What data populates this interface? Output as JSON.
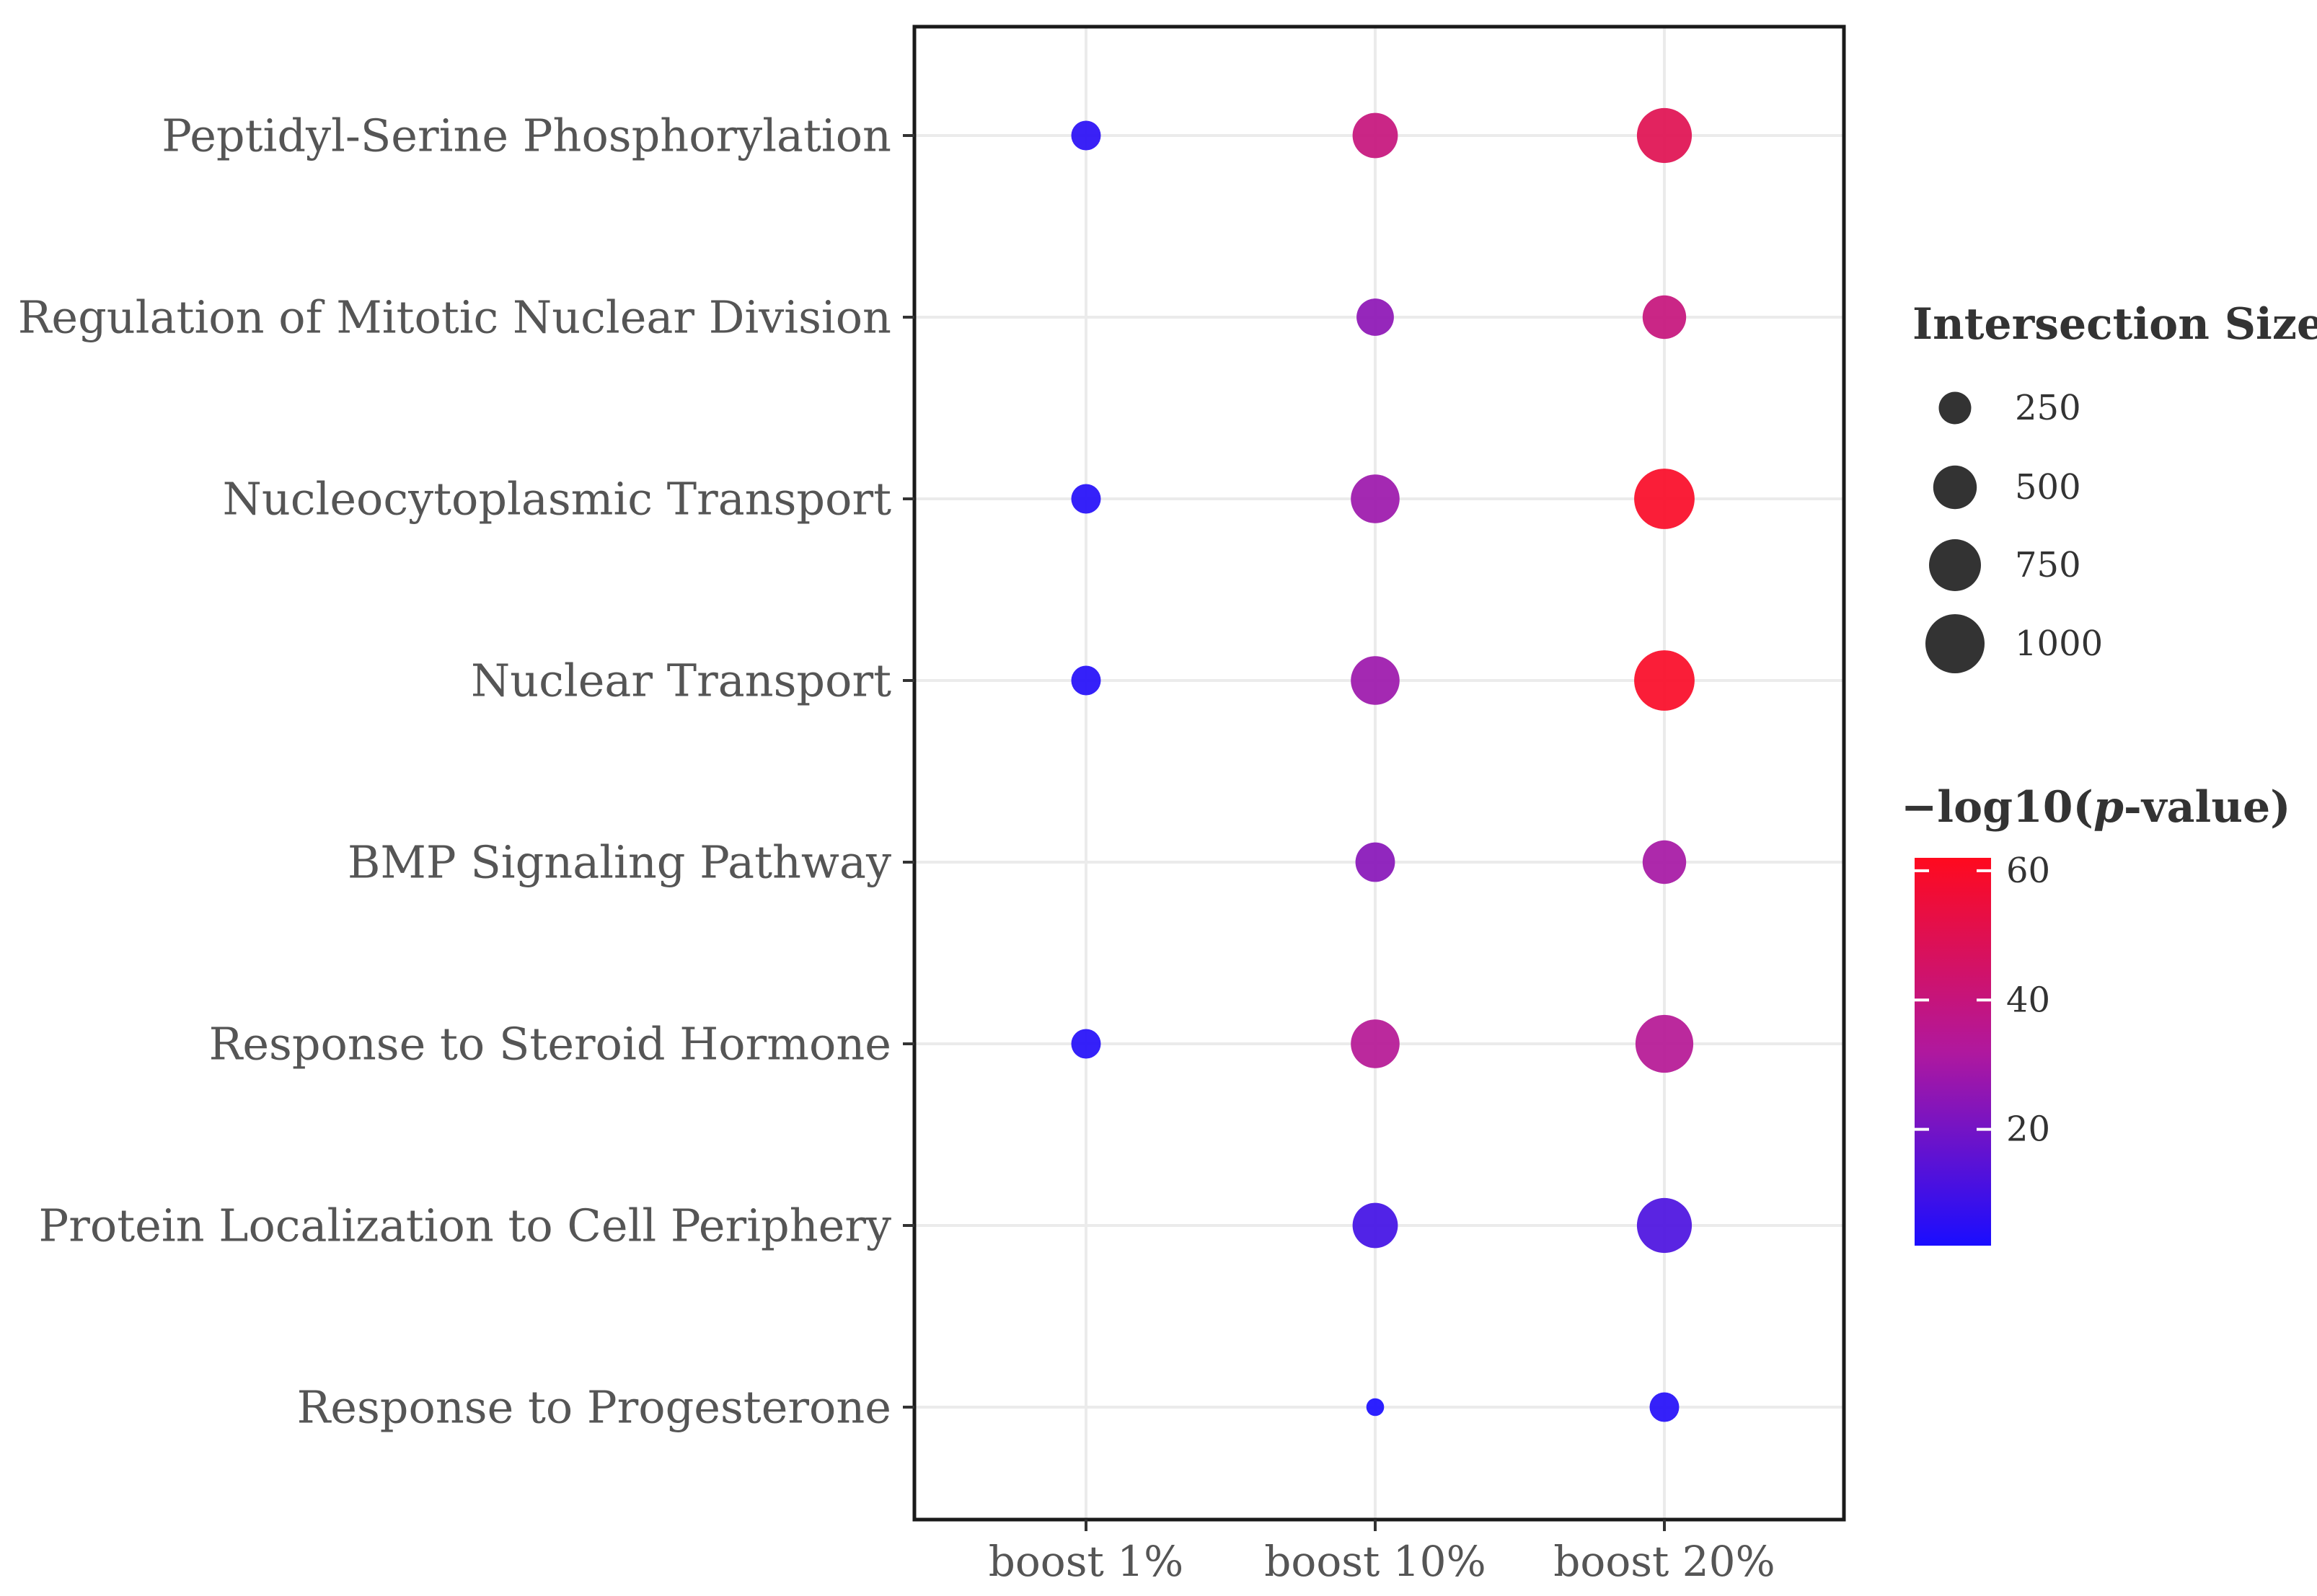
{
  "chart_data": {
    "type": "dot",
    "title": "",
    "xlabel": "",
    "ylabel": "",
    "x_categories": [
      "boost 1%",
      "boost 10%",
      "boost 20%"
    ],
    "y_categories": [
      "Peptidyl-Serine Phosphorylation",
      "Regulation of Mitotic Nuclear Division",
      "Nucleocytoplasmic Transport",
      "Nuclear Transport",
      "BMP Signaling Pathway",
      "Response to Steroid Hormone",
      "Protein Localization to Cell Periphery",
      "Response to Progesterone"
    ],
    "points": [
      {
        "x": "boost 1%",
        "y": "Peptidyl-Serine Phosphorylation",
        "size": 200,
        "neglog10p": 5
      },
      {
        "x": "boost 10%",
        "y": "Peptidyl-Serine Phosphorylation",
        "size": 550,
        "neglog10p": 40
      },
      {
        "x": "boost 20%",
        "y": "Peptidyl-Serine Phosphorylation",
        "size": 850,
        "neglog10p": 50
      },
      {
        "x": "boost 10%",
        "y": "Regulation of Mitotic Nuclear Division",
        "size": 350,
        "neglog10p": 25
      },
      {
        "x": "boost 20%",
        "y": "Regulation of Mitotic Nuclear Division",
        "size": 500,
        "neglog10p": 40
      },
      {
        "x": "boost 1%",
        "y": "Nucleocytoplasmic Transport",
        "size": 200,
        "neglog10p": 4
      },
      {
        "x": "boost 10%",
        "y": "Nucleocytoplasmic Transport",
        "size": 650,
        "neglog10p": 28
      },
      {
        "x": "boost 20%",
        "y": "Nucleocytoplasmic Transport",
        "size": 1050,
        "neglog10p": 60
      },
      {
        "x": "boost 1%",
        "y": "Nuclear Transport",
        "size": 200,
        "neglog10p": 4
      },
      {
        "x": "boost 10%",
        "y": "Nuclear Transport",
        "size": 650,
        "neglog10p": 28
      },
      {
        "x": "boost 20%",
        "y": "Nuclear Transport",
        "size": 1050,
        "neglog10p": 60
      },
      {
        "x": "boost 10%",
        "y": "BMP Signaling Pathway",
        "size": 400,
        "neglog10p": 24
      },
      {
        "x": "boost 20%",
        "y": "BMP Signaling Pathway",
        "size": 500,
        "neglog10p": 30
      },
      {
        "x": "boost 1%",
        "y": "Response to Steroid Hormone",
        "size": 200,
        "neglog10p": 4
      },
      {
        "x": "boost 10%",
        "y": "Response to Steroid Hormone",
        "size": 650,
        "neglog10p": 34
      },
      {
        "x": "boost 20%",
        "y": "Response to Steroid Hormone",
        "size": 950,
        "neglog10p": 34
      },
      {
        "x": "boost 10%",
        "y": "Protein Localization to Cell Periphery",
        "size": 550,
        "neglog10p": 10
      },
      {
        "x": "boost 20%",
        "y": "Protein Localization to Cell Periphery",
        "size": 850,
        "neglog10p": 12
      },
      {
        "x": "boost 10%",
        "y": "Response to Progesterone",
        "size": 50,
        "neglog10p": 2
      },
      {
        "x": "boost 20%",
        "y": "Response to Progesterone",
        "size": 200,
        "neglog10p": 4
      }
    ],
    "size_legend": {
      "title": "Intersection Size",
      "breaks": [
        250,
        500,
        750,
        1000
      ],
      "labels": [
        "250",
        "500",
        "750",
        "1000"
      ]
    },
    "color_legend": {
      "title_prefix": "−log10(",
      "title_italic": "p",
      "title_suffix": "-value)",
      "range": [
        2,
        62
      ],
      "ticks": [
        20,
        40,
        60
      ],
      "labels": [
        "20",
        "40",
        "60"
      ],
      "low_color": "#1a0dff",
      "mid_color": "#b0189e",
      "high_color": "#ff0a1e"
    },
    "grid": true,
    "legend_position": "right"
  }
}
